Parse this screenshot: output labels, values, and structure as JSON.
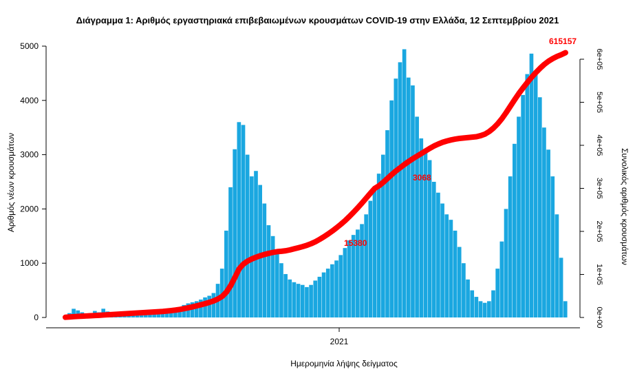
{
  "chart_data": {
    "type": "bar",
    "title": "Διάγραμμα 1: Αριθμός εργαστηριακά επιβεβαιωμένων κρουσμάτων COVID-19 στην Ελλάδα, 12 Σεπτεμβρίου 2021",
    "xlabel": "Ημερομηνία λήψης δείγματος",
    "ylabel": "Αριθμός νέων κρουσμάτων",
    "y2label": "Συνολικός αριθμός κρουσμάτων",
    "ylim": [
      0,
      5000
    ],
    "y2lim": [
      0,
      600000
    ],
    "yticks": [
      "0",
      "1000",
      "2000",
      "3000",
      "4000",
      "5000"
    ],
    "y2ticks": [
      "0e+00",
      "1e+05",
      "2e+05",
      "3e+05",
      "4e+05",
      "5e+05",
      "6e+05"
    ],
    "xticks": [
      "2021"
    ],
    "bar_color": "#1aa7e0",
    "line_color": "#ff0000",
    "series": [
      {
        "name": "daily",
        "values": [
          30,
          80,
          160,
          130,
          95,
          60,
          80,
          120,
          95,
          161,
          110,
          90,
          85,
          90,
          80,
          95,
          85,
          80,
          75,
          80,
          95,
          85,
          95,
          90,
          110,
          140,
          160,
          190,
          230,
          260,
          280,
          300,
          330,
          370,
          400,
          450,
          620,
          900,
          1600,
          2400,
          3100,
          3600,
          3548,
          3000,
          2600,
          2700,
          2442,
          2100,
          1700,
          1500,
          1200,
          1000,
          800,
          700,
          650,
          620,
          600,
          560,
          600,
          680,
          750,
          830,
          900,
          980,
          1050,
          1150,
          1280,
          1420,
          1521,
          1620,
          1721,
          1900,
          2150,
          2400,
          2650,
          3000,
          3451,
          4000,
          4402,
          4703,
          4943,
          4421,
          4276,
          3700,
          3300,
          3100,
          2900,
          2500,
          2300,
          2100,
          1900,
          1800,
          1600,
          1300,
          1000,
          700,
          500,
          380,
          300,
          270,
          300,
          500,
          900,
          1400,
          2000,
          2600,
          3200,
          3700,
          4100,
          4485,
          4862,
          4500,
          4058,
          3500,
          3093,
          2600,
          1900,
          1100,
          300
        ]
      },
      {
        "name": "cumulative",
        "values": [
          500,
          1200,
          1900,
          2500,
          3000,
          3500,
          4000,
          4500,
          5000,
          5700,
          6300,
          6900,
          7500,
          8100,
          8700,
          9300,
          9900,
          10500,
          11000,
          11600,
          12200,
          12800,
          13400,
          14000,
          15000,
          16000,
          17200,
          18700,
          20500,
          22500,
          24700,
          27000,
          29500,
          32200,
          35200,
          38500,
          43000,
          49000,
          59000,
          74000,
          93000,
          113000,
          124000,
          131000,
          136000,
          140000,
          143500,
          146500,
          149000,
          151200,
          153000,
          153800,
          155000,
          157000,
          159500,
          162000,
          164700,
          167800,
          171500,
          176000,
          181500,
          187500,
          194000,
          201000,
          208500,
          216500,
          225000,
          234500,
          244500,
          255000,
          266000,
          277500,
          289000,
          300000,
          306000,
          314000,
          323000,
          332000,
          340500,
          348000,
          355500,
          362500,
          369000,
          375000,
          381000,
          387000,
          393000,
          398500,
          403000,
          407000,
          410000,
          412500,
          414500,
          416000,
          417000,
          418000,
          419000,
          420000,
          422500,
          426000,
          432000,
          440000,
          450000,
          462000,
          476000,
          491000,
          506000,
          520500,
          533500,
          546000,
          558000,
          569000,
          579000,
          588000,
          595500,
          601500,
          606500,
          610500,
          615157
        ]
      }
    ],
    "annotations": [
      "15380",
      "3068",
      "615157"
    ]
  }
}
